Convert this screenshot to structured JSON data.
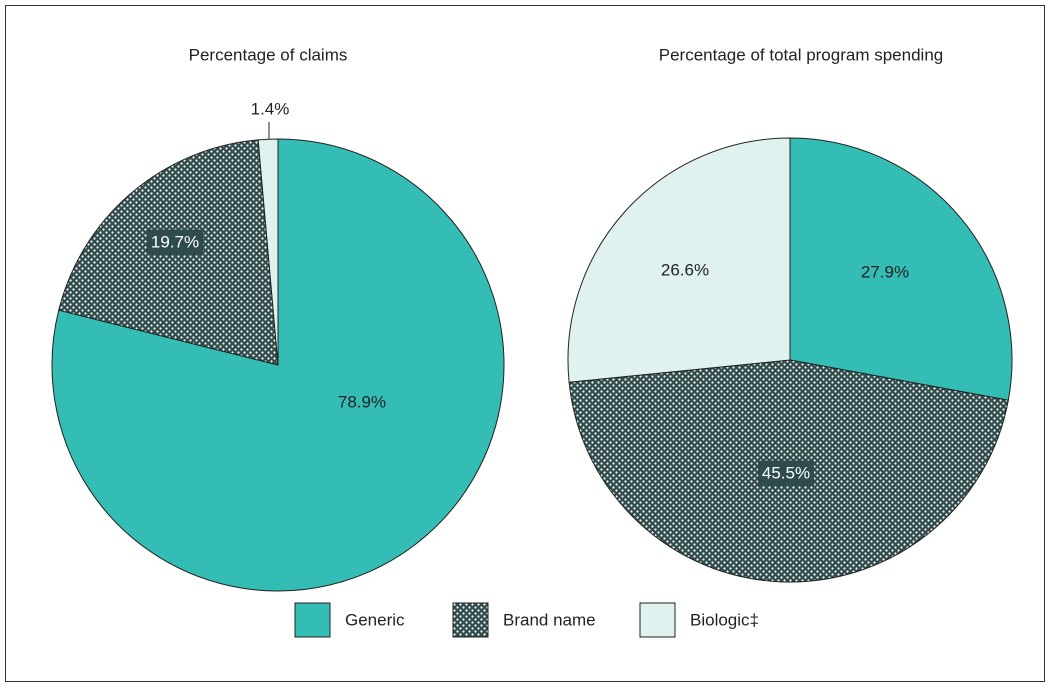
{
  "chart_data": [
    {
      "type": "pie",
      "title": "Percentage of claims",
      "categories": [
        "Generic",
        "Brand name",
        "Biologic‡"
      ],
      "values": [
        78.9,
        19.7,
        1.4
      ],
      "value_labels": [
        "78.9%",
        "19.7%",
        "1.4%"
      ],
      "colors": [
        "#33bdb5",
        "#2f4b4b",
        "#e0f2ef"
      ],
      "patterns": [
        "solid",
        "dots",
        "solid"
      ]
    },
    {
      "type": "pie",
      "title": "Percentage of total program spending",
      "categories": [
        "Generic",
        "Brand name",
        "Biologic‡"
      ],
      "values": [
        27.9,
        45.5,
        26.6
      ],
      "value_labels": [
        "27.9%",
        "45.5%",
        "26.6%"
      ],
      "colors": [
        "#33bdb5",
        "#2f4b4b",
        "#e0f2ef"
      ],
      "patterns": [
        "solid",
        "dots",
        "solid"
      ]
    }
  ]
}
